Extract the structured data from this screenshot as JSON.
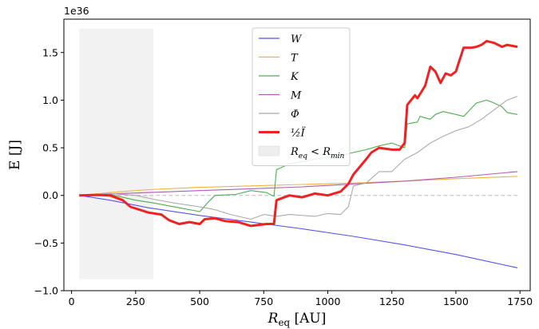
{
  "chart_data": {
    "type": "line",
    "xlabel": "R_eq [AU]",
    "ylabel": "E [J]",
    "y_offset_label": "1e36",
    "xlim": [
      -30,
      1790
    ],
    "ylim": [
      -1.0,
      1.85
    ],
    "xticks": [
      0,
      250,
      500,
      750,
      1000,
      1250,
      1500,
      1750
    ],
    "yticks": [
      -1.0,
      -0.5,
      0.0,
      0.5,
      1.0,
      1.5
    ],
    "ytick_labels": [
      "−1.0",
      "−0.5",
      "0.0",
      "0.5",
      "1.0",
      "1.5"
    ],
    "zero_line": true,
    "grid": false,
    "legend_position": "top-center",
    "shaded_region": {
      "x": [
        30,
        320
      ],
      "y": [
        -0.88,
        1.75
      ],
      "label": "R_eq < R_min",
      "color": "#e8e8e8"
    },
    "series": [
      {
        "name": "W",
        "color": "#5555ee",
        "width": 1.1,
        "x": [
          30,
          150,
          300,
          500,
          700,
          900,
          1100,
          1300,
          1500,
          1740
        ],
        "y": [
          0.0,
          -0.05,
          -0.13,
          -0.21,
          -0.28,
          -0.35,
          -0.43,
          -0.52,
          -0.62,
          -0.76
        ]
      },
      {
        "name": "T",
        "color": "#f5b041",
        "width": 1.1,
        "x": [
          30,
          150,
          300,
          500,
          700,
          900,
          1100,
          1300,
          1500,
          1740
        ],
        "y": [
          0.0,
          0.03,
          0.06,
          0.085,
          0.1,
          0.115,
          0.13,
          0.15,
          0.175,
          0.2
        ]
      },
      {
        "name": "K",
        "color": "#4caf50",
        "width": 1.1,
        "x": [
          30,
          150,
          250,
          320,
          420,
          500,
          530,
          560,
          640,
          700,
          760,
          790,
          800,
          850,
          950,
          1050,
          1100,
          1150,
          1200,
          1250,
          1300,
          1310,
          1350,
          1360,
          1400,
          1420,
          1450,
          1500,
          1530,
          1580,
          1620,
          1640,
          1680,
          1700,
          1740
        ],
        "y": [
          0.0,
          0.01,
          -0.05,
          -0.08,
          -0.13,
          -0.17,
          -0.08,
          0.0,
          0.01,
          0.05,
          0.03,
          -0.01,
          0.27,
          0.33,
          0.38,
          0.42,
          0.45,
          0.48,
          0.52,
          0.55,
          0.5,
          0.75,
          0.77,
          0.83,
          0.8,
          0.85,
          0.88,
          0.85,
          0.83,
          0.97,
          1.0,
          0.98,
          0.93,
          0.87,
          0.85
        ]
      },
      {
        "name": "M",
        "color": "#b05cb5",
        "width": 1.1,
        "x": [
          30,
          150,
          300,
          500,
          700,
          900,
          1100,
          1300,
          1500,
          1740
        ],
        "y": [
          0.0,
          0.015,
          0.03,
          0.05,
          0.07,
          0.09,
          0.12,
          0.15,
          0.19,
          0.25
        ]
      },
      {
        "name": "Φ̇",
        "color": "#aaaaaa",
        "width": 1.1,
        "x": [
          30,
          150,
          250,
          320,
          400,
          500,
          560,
          620,
          700,
          750,
          800,
          850,
          950,
          1000,
          1050,
          1080,
          1100,
          1150,
          1200,
          1250,
          1300,
          1350,
          1400,
          1450,
          1500,
          1550,
          1600,
          1650,
          1700,
          1740
        ],
        "y": [
          0.0,
          0.02,
          0.0,
          -0.04,
          -0.08,
          -0.12,
          -0.15,
          -0.2,
          -0.25,
          -0.2,
          -0.22,
          -0.2,
          -0.22,
          -0.19,
          -0.2,
          -0.12,
          0.1,
          0.13,
          0.25,
          0.25,
          0.38,
          0.45,
          0.55,
          0.62,
          0.68,
          0.72,
          0.8,
          0.9,
          1.0,
          1.04
        ]
      },
      {
        "name": "½Ï",
        "color": "#ee2222",
        "width": 3.0,
        "x": [
          30,
          100,
          150,
          200,
          230,
          300,
          350,
          380,
          420,
          460,
          500,
          520,
          560,
          600,
          650,
          700,
          760,
          790,
          800,
          850,
          900,
          950,
          1000,
          1050,
          1080,
          1100,
          1150,
          1170,
          1200,
          1250,
          1280,
          1300,
          1310,
          1340,
          1350,
          1380,
          1400,
          1420,
          1440,
          1460,
          1480,
          1500,
          1530,
          1560,
          1580,
          1600,
          1620,
          1650,
          1680,
          1700,
          1740
        ],
        "y": [
          0.0,
          0.005,
          0.0,
          -0.05,
          -0.12,
          -0.18,
          -0.2,
          -0.26,
          -0.3,
          -0.28,
          -0.3,
          -0.25,
          -0.24,
          -0.27,
          -0.28,
          -0.32,
          -0.3,
          -0.3,
          -0.05,
          0.0,
          -0.02,
          0.02,
          0.0,
          0.04,
          0.12,
          0.22,
          0.38,
          0.45,
          0.5,
          0.48,
          0.48,
          0.55,
          0.95,
          1.05,
          1.02,
          1.15,
          1.35,
          1.3,
          1.18,
          1.28,
          1.26,
          1.3,
          1.55,
          1.55,
          1.56,
          1.58,
          1.62,
          1.6,
          1.56,
          1.58,
          1.56
        ]
      }
    ]
  },
  "legend": {
    "items": [
      {
        "label": "W",
        "color": "#5555ee",
        "width": 1.2
      },
      {
        "label": "T",
        "color": "#f5b041",
        "width": 1.2
      },
      {
        "label": "K",
        "color": "#4caf50",
        "width": 1.2
      },
      {
        "label": "M",
        "color": "#b05cb5",
        "width": 1.2
      },
      {
        "label": "Φ̇",
        "color": "#aaaaaa",
        "width": 1.2
      },
      {
        "label": "½Ï",
        "color": "#ee2222",
        "width": 3.0
      },
      {
        "label": "R_eq < R_min",
        "color": "#eeeeee",
        "swatch": "patch"
      }
    ]
  }
}
